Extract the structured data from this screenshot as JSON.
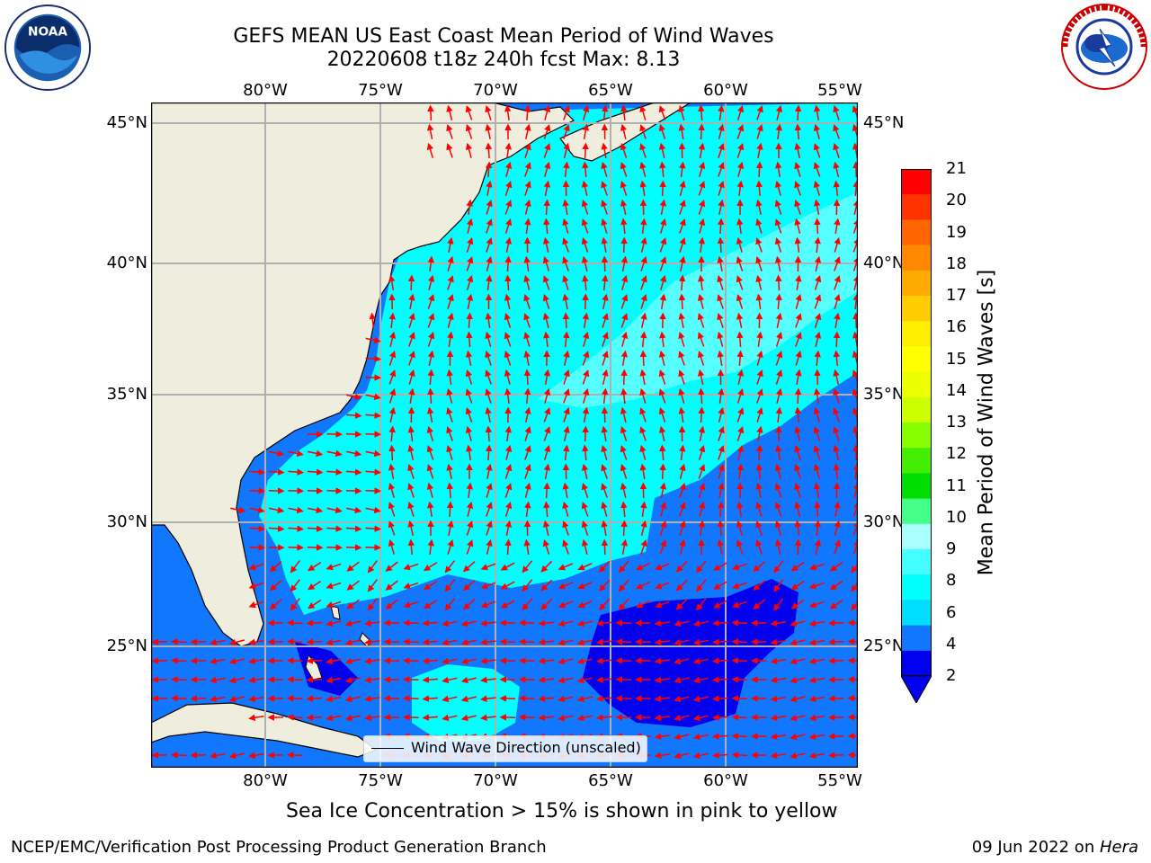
{
  "title": {
    "line1": "GEFS MEAN US East Coast Mean Period of Wind Waves",
    "line2": "20220608 t18z 240h fcst   Max: 8.13"
  },
  "axes": {
    "lon_labels": [
      "80°W",
      "75°W",
      "70°W",
      "65°W",
      "60°W",
      "55°W"
    ],
    "lat_labels": [
      "45°N",
      "40°N",
      "35°N",
      "30°N",
      "25°N"
    ]
  },
  "legend": {
    "label": "Wind Wave Direction (unscaled)"
  },
  "colorbar": {
    "title": "Mean Period of Wind Waves [s]",
    "ticks": [
      "21",
      "20",
      "19",
      "18",
      "17",
      "16",
      "15",
      "14",
      "13",
      "12",
      "11",
      "10",
      "9",
      "8",
      "6",
      "4",
      "2"
    ],
    "colors": [
      "#ff0000",
      "#ff3300",
      "#ff6600",
      "#ff8800",
      "#ffaa00",
      "#ffcc00",
      "#ffee00",
      "#ffff00",
      "#eeff00",
      "#ccff00",
      "#88ff00",
      "#44ee00",
      "#00dd00",
      "#44ff88",
      "#aaffff",
      "#44ffff",
      "#00ffff",
      "#00ddff",
      "#1177ff",
      "#0000ee"
    ]
  },
  "note": "Sea Ice Concentration > 15% is shown in pink to yellow",
  "footer": {
    "left": "NCEP/EMC/Verification Post Processing Product Generation Branch",
    "date": "09 Jun 2022 on ",
    "system": "Hera"
  },
  "logos": {
    "noaa_text": "NOAA",
    "nws_text": "NATIONAL WEATHER SERVICE"
  },
  "colors": {
    "land": "#efedde",
    "period_2_4": "#1177ff",
    "period_4_6": "#00ffff",
    "period_6_8": "#55ffff",
    "period_lt2": "#0000ee",
    "arrows": "#ff0000",
    "grid": "#b0b0b0"
  }
}
